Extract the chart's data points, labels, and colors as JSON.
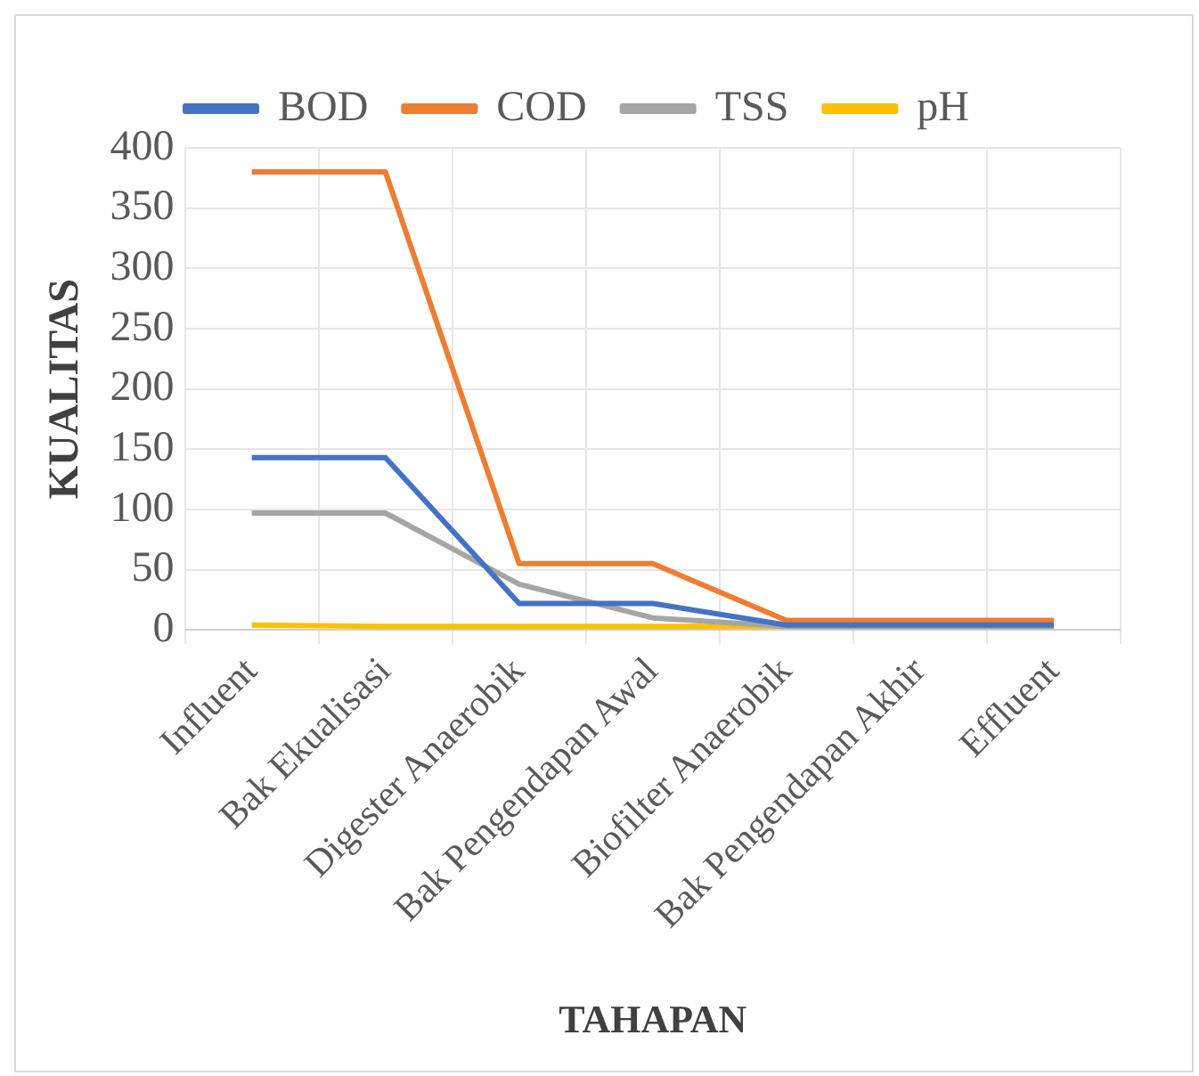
{
  "chart_data": {
    "type": "line",
    "xlabel": "TAHAPAN",
    "ylabel": "KUALITAS",
    "categories": [
      "Influent",
      "Bak Ekualisasi",
      "Digester Anaerobik",
      "Bak Pengendapan Awal",
      "Biofilter Anaerobik",
      "Bak Pengendapan Akhir",
      "Effluent"
    ],
    "series": [
      {
        "name": "BOD",
        "color": "#4472c4",
        "values": [
          143,
          143,
          22,
          22,
          4,
          4,
          4
        ]
      },
      {
        "name": "COD",
        "color": "#ed7d31",
        "values": [
          380,
          380,
          55,
          55,
          8,
          8,
          8
        ]
      },
      {
        "name": "TSS",
        "color": "#a5a5a5",
        "values": [
          97,
          97,
          38,
          10,
          3,
          3,
          3
        ]
      },
      {
        "name": "pH",
        "color": "#ffc000",
        "values": [
          4,
          3,
          3,
          3,
          3,
          3,
          3
        ]
      }
    ],
    "ylim": [
      0,
      400
    ],
    "yticks": [
      0,
      50,
      100,
      150,
      200,
      250,
      300,
      350,
      400
    ],
    "grid": true,
    "legend": "top",
    "marker": "none",
    "line_style": "solid"
  }
}
